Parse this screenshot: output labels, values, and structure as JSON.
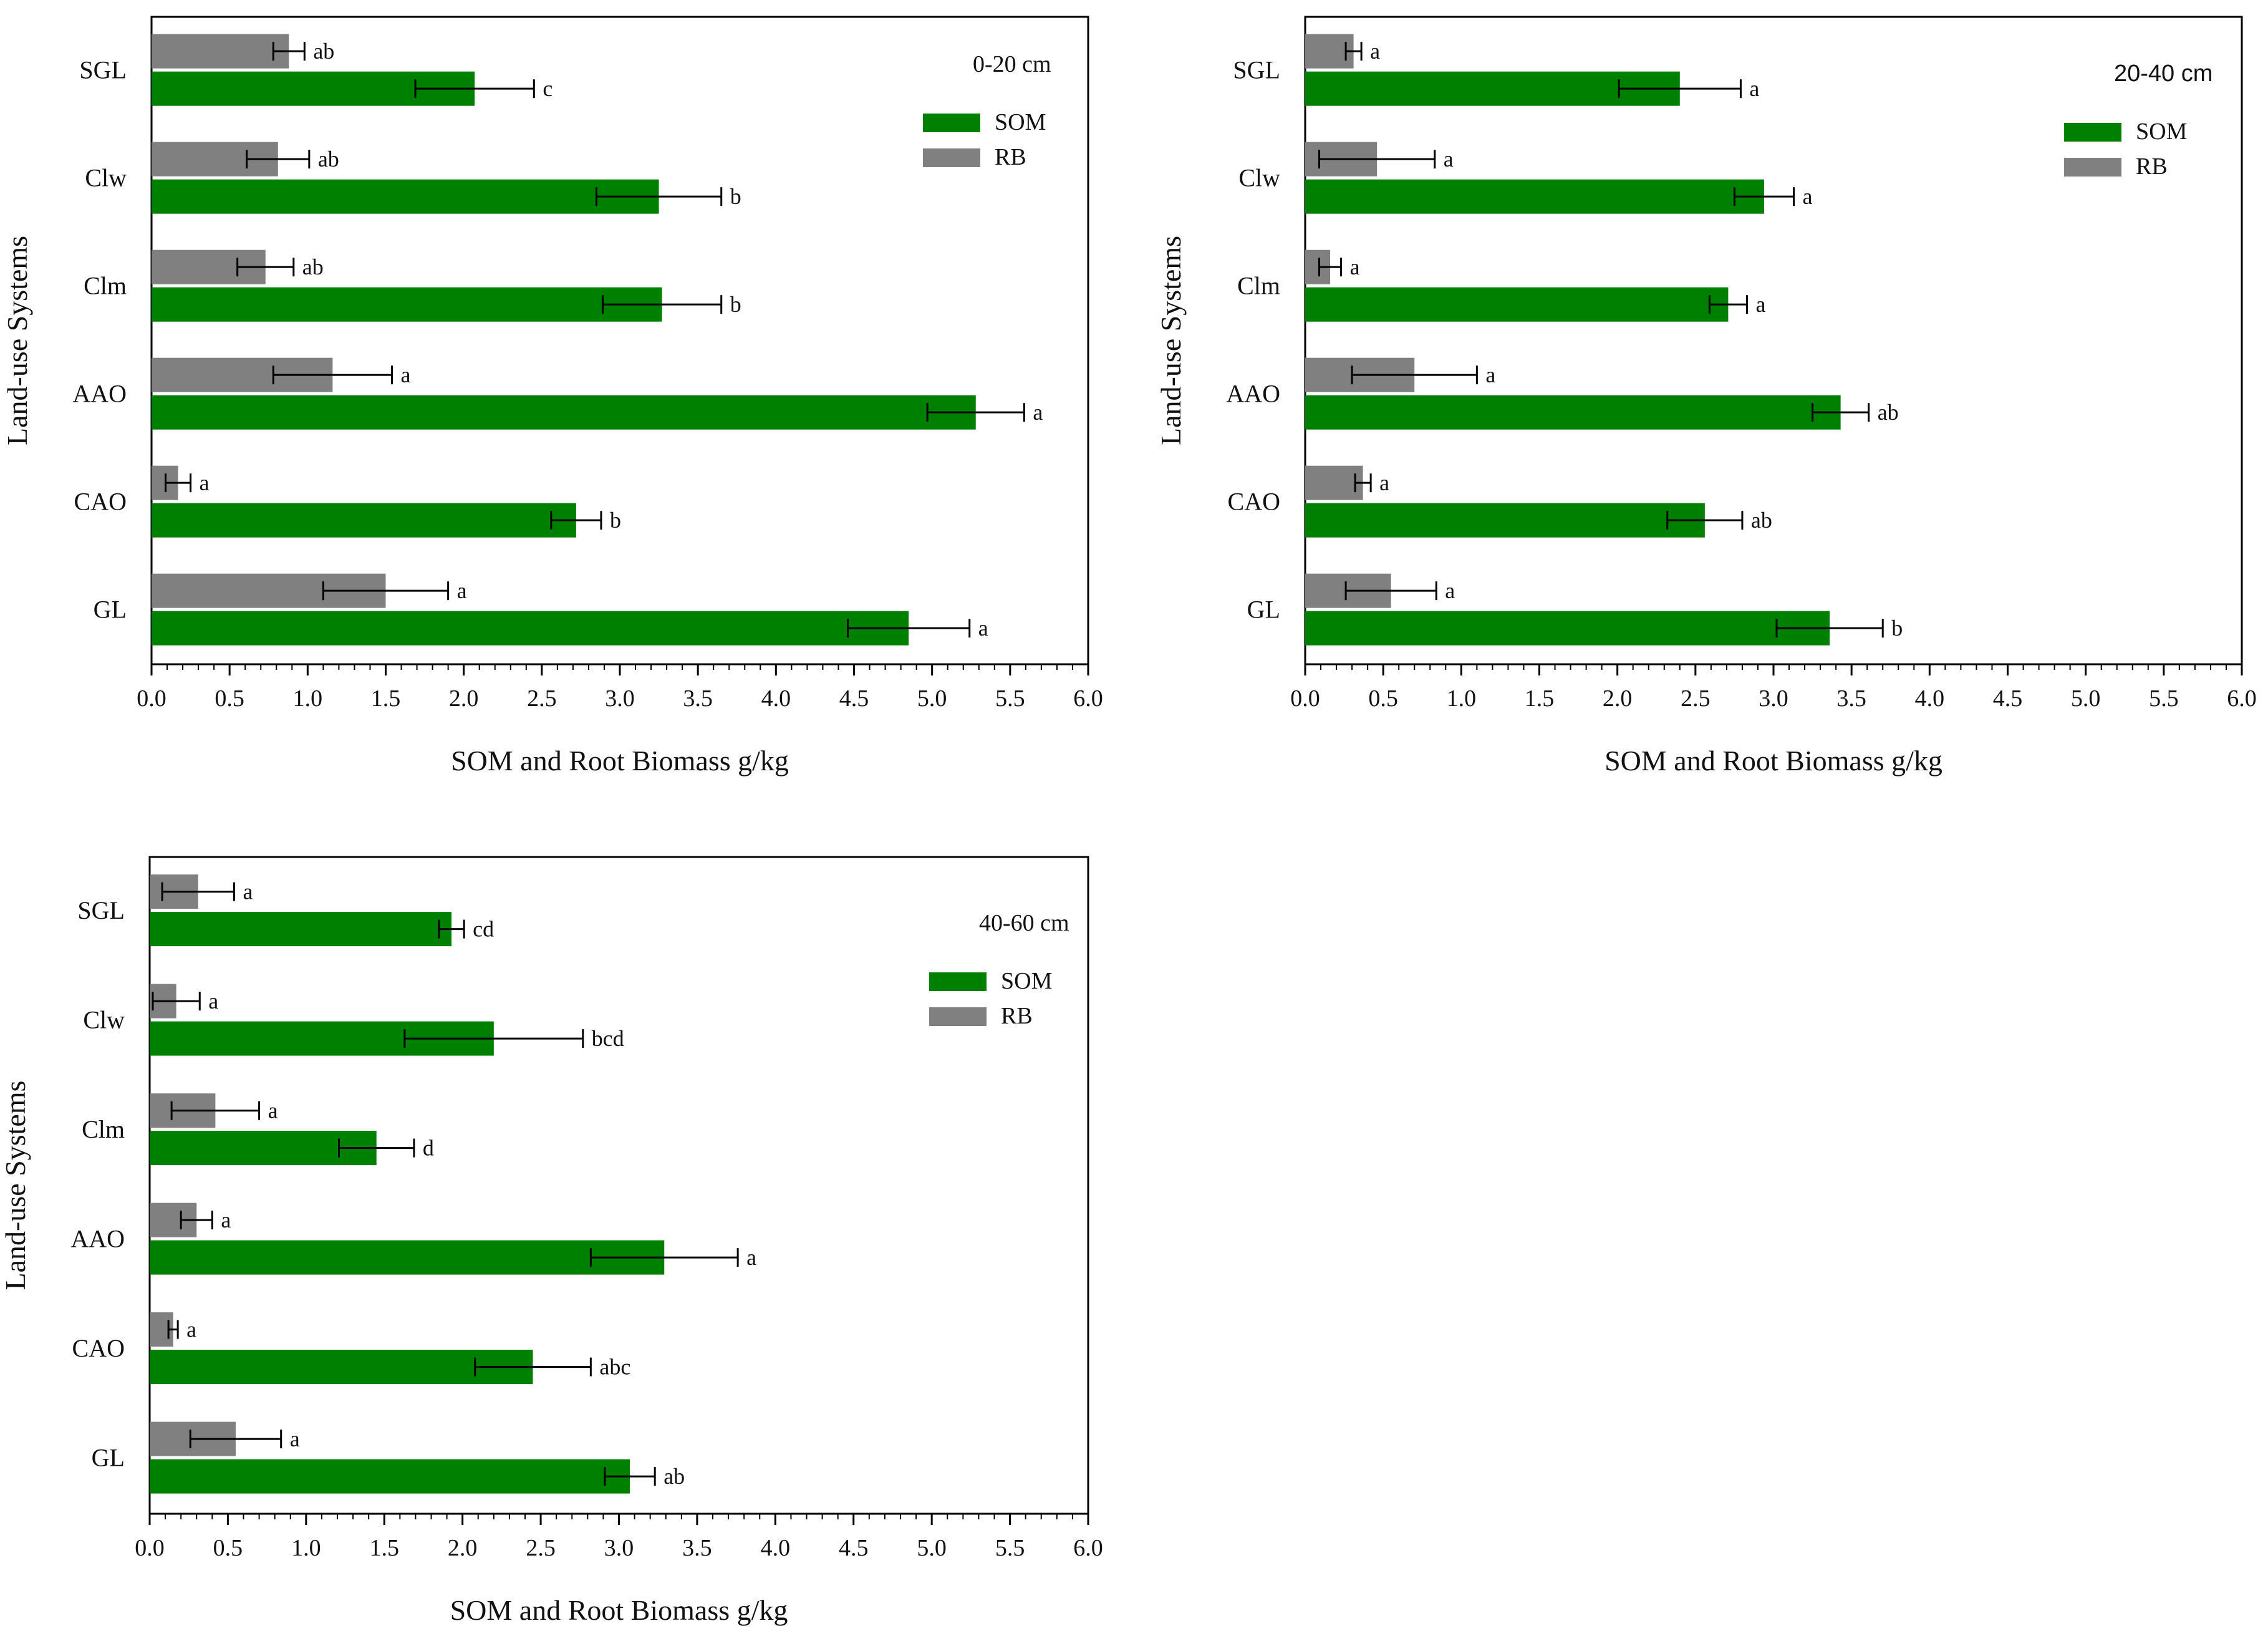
{
  "figure": {
    "legend_som": "SOM",
    "legend_rb": "RB"
  },
  "colors": {
    "som": "#008000",
    "rb": "#808080",
    "axis": "#000000"
  },
  "chart_data": [
    {
      "type": "bar",
      "orientation": "horizontal",
      "title": "0-20 cm",
      "xlabel": "SOM and Root Biomass g/kg",
      "ylabel": "Land-use Systems",
      "xlim": [
        0,
        6
      ],
      "xticks": [
        "0.0",
        "0.5",
        "1.0",
        "1.5",
        "2.0",
        "2.5",
        "3.0",
        "3.5",
        "4.0",
        "4.5",
        "5.0",
        "5.5",
        "6.0"
      ],
      "categories": [
        "SGL",
        "Clw",
        "Clm",
        "AAO",
        "CAO",
        "GL"
      ],
      "series": [
        {
          "name": "RB",
          "values": [
            0.88,
            0.81,
            0.73,
            1.16,
            0.17,
            1.5
          ],
          "errors": [
            0.1,
            0.2,
            0.18,
            0.38,
            0.08,
            0.4
          ],
          "labels": [
            "ab",
            "ab",
            "ab",
            "a",
            "a",
            "a"
          ]
        },
        {
          "name": "SOM",
          "values": [
            2.07,
            3.25,
            3.27,
            5.28,
            2.72,
            4.85
          ],
          "errors": [
            0.38,
            0.4,
            0.38,
            0.31,
            0.16,
            0.39
          ],
          "labels": [
            "c",
            "b",
            "b",
            "a",
            "b",
            "a"
          ]
        }
      ],
      "legend": "top-right",
      "title_font": "serif"
    },
    {
      "type": "bar",
      "orientation": "horizontal",
      "title": "20-40 cm",
      "xlabel": "SOM and Root Biomass g/kg",
      "ylabel": "Land-use Systems",
      "xlim": [
        0,
        6
      ],
      "xticks": [
        "0.0",
        "0.5",
        "1.0",
        "1.5",
        "2.0",
        "2.5",
        "3.0",
        "3.5",
        "4.0",
        "4.5",
        "5.0",
        "5.5",
        "6.0"
      ],
      "categories": [
        "SGL",
        "Clw",
        "Clm",
        "AAO",
        "CAO",
        "GL"
      ],
      "series": [
        {
          "name": "RB",
          "values": [
            0.31,
            0.46,
            0.16,
            0.7,
            0.37,
            0.55
          ],
          "errors": [
            0.05,
            0.37,
            0.07,
            0.4,
            0.05,
            0.29
          ],
          "labels": [
            "a",
            "a",
            "a",
            "a",
            "a",
            "a"
          ]
        },
        {
          "name": "SOM",
          "values": [
            2.4,
            2.94,
            2.71,
            3.43,
            2.56,
            3.36
          ],
          "errors": [
            0.39,
            0.19,
            0.12,
            0.18,
            0.24,
            0.34
          ],
          "labels": [
            "a",
            "a",
            "a",
            "ab",
            "ab",
            "b"
          ]
        }
      ],
      "legend": "top-right",
      "title_font": "sans"
    },
    {
      "type": "bar",
      "orientation": "horizontal",
      "title": "40-60 cm",
      "xlabel": "SOM and Root Biomass g/kg",
      "ylabel": "Land-use Systems",
      "xlim": [
        0,
        6
      ],
      "xticks": [
        "0.0",
        "0.5",
        "1.0",
        "1.5",
        "2.0",
        "2.5",
        "3.0",
        "3.5",
        "4.0",
        "4.5",
        "5.0",
        "5.5",
        "6.0"
      ],
      "categories": [
        "SGL",
        "Clw",
        "Clm",
        "AAO",
        "CAO",
        "GL"
      ],
      "series": [
        {
          "name": "RB",
          "values": [
            0.31,
            0.17,
            0.42,
            0.3,
            0.15,
            0.55
          ],
          "errors": [
            0.23,
            0.15,
            0.28,
            0.1,
            0.03,
            0.29
          ],
          "labels": [
            "a",
            "a",
            "a",
            "a",
            "a",
            "a"
          ]
        },
        {
          "name": "SOM",
          "values": [
            1.93,
            2.2,
            1.45,
            3.29,
            2.45,
            3.07
          ],
          "errors": [
            0.08,
            0.57,
            0.24,
            0.47,
            0.37,
            0.16
          ],
          "labels": [
            "cd",
            "bcd",
            "d",
            "a",
            "abc",
            "ab"
          ]
        }
      ],
      "legend": "top-right",
      "title_font": "serif"
    }
  ]
}
